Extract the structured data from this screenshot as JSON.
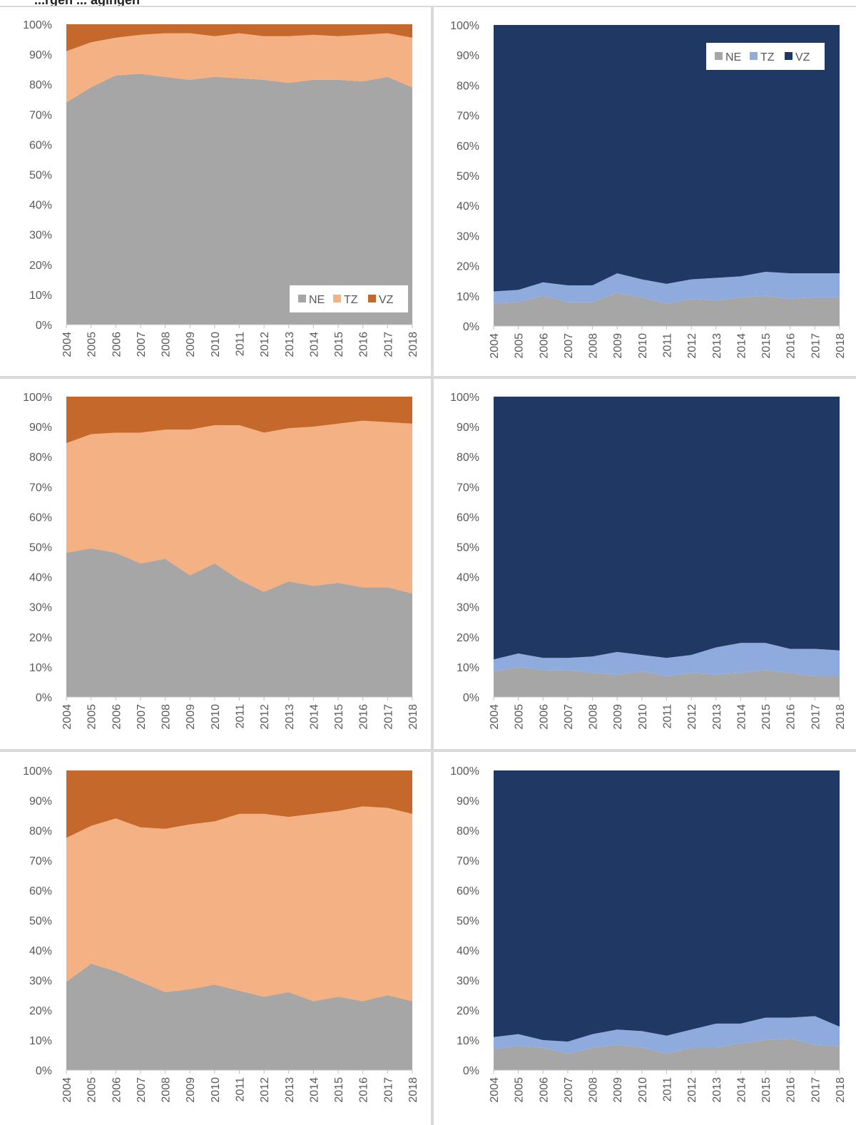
{
  "page": {
    "title_fragment": "...rgen ... agingen"
  },
  "legend_labels": [
    "NE",
    "TZ",
    "VZ"
  ],
  "colors": {
    "NE": "#a6a6a6",
    "TZ_orange": "#f4b183",
    "VZ_orange": "#c5682b",
    "TZ_blue": "#8faadc",
    "VZ_blue": "#203864",
    "axis_text": "#595959",
    "divider": "#d9d9d9"
  },
  "chart_data": [
    {
      "type": "area",
      "stacked": true,
      "palette": "orange",
      "legend_position": "bottom-right",
      "x": [
        "2004",
        "2005",
        "2006",
        "2007",
        "2008",
        "2009",
        "2010",
        "2011",
        "2012",
        "2013",
        "2014",
        "2015",
        "2016",
        "2017",
        "2018"
      ],
      "ylim": [
        0,
        100
      ],
      "yticks": [
        "0%",
        "10%",
        "20%",
        "30%",
        "40%",
        "50%",
        "60%",
        "70%",
        "80%",
        "90%",
        "100%"
      ],
      "series": [
        {
          "name": "NE",
          "values": [
            74,
            79,
            83,
            83.5,
            82.5,
            81.5,
            82.5,
            82,
            81.5,
            80.5,
            81.5,
            81.5,
            81,
            82.5,
            79
          ]
        },
        {
          "name": "TZ",
          "values": [
            17,
            15,
            12.5,
            13,
            14.5,
            15.5,
            13.5,
            15,
            14.5,
            15.5,
            15,
            14.5,
            15.5,
            14.5,
            16.5
          ]
        },
        {
          "name": "VZ",
          "values": [
            9,
            6,
            4.5,
            3.5,
            3,
            3,
            4,
            3,
            4,
            4,
            3.5,
            4,
            3.5,
            3,
            4.5
          ]
        }
      ]
    },
    {
      "type": "area",
      "stacked": true,
      "palette": "blue",
      "legend_position": "top-right",
      "x": [
        "2004",
        "2005",
        "2006",
        "2007",
        "2008",
        "2009",
        "2010",
        "2011",
        "2012",
        "2013",
        "2014",
        "2015",
        "2016",
        "2017",
        "2018"
      ],
      "ylim": [
        0,
        100
      ],
      "yticks": [
        "0%",
        "10%",
        "20%",
        "30%",
        "40%",
        "50%",
        "60%",
        "70%",
        "80%",
        "90%",
        "100%"
      ],
      "series": [
        {
          "name": "NE",
          "values": [
            7.5,
            8,
            10,
            8,
            8,
            11,
            9.5,
            7.5,
            9,
            8.5,
            9.5,
            10,
            9,
            9.5,
            9.5
          ]
        },
        {
          "name": "TZ",
          "values": [
            4,
            4,
            4.5,
            5.5,
            5.5,
            6.5,
            6,
            6.5,
            6.5,
            7.5,
            7,
            8,
            8.5,
            8,
            8
          ]
        },
        {
          "name": "VZ",
          "values": [
            88.5,
            88,
            85.5,
            86.5,
            86.5,
            82.5,
            84.5,
            86,
            84.5,
            84,
            83.5,
            82,
            82.5,
            82.5,
            82.5
          ]
        }
      ]
    },
    {
      "type": "area",
      "stacked": true,
      "palette": "orange",
      "legend_position": "none",
      "x": [
        "2004",
        "2005",
        "2006",
        "2007",
        "2008",
        "2009",
        "2010",
        "2011",
        "2012",
        "2013",
        "2014",
        "2015",
        "2016",
        "2017",
        "2018"
      ],
      "ylim": [
        0,
        100
      ],
      "yticks": [
        "0%",
        "10%",
        "20%",
        "30%",
        "40%",
        "50%",
        "60%",
        "70%",
        "80%",
        "90%",
        "100%"
      ],
      "series": [
        {
          "name": "NE",
          "values": [
            48,
            49.5,
            48,
            44.5,
            46,
            40.5,
            44.5,
            39,
            35,
            38.5,
            37,
            38,
            36.5,
            36.5,
            34.5
          ]
        },
        {
          "name": "TZ",
          "values": [
            36.5,
            38,
            40,
            43.5,
            43,
            48.5,
            46,
            51.5,
            53,
            51,
            53,
            53,
            55.5,
            55,
            56.5
          ]
        },
        {
          "name": "VZ",
          "values": [
            15.5,
            12.5,
            12,
            12,
            11,
            11,
            9.5,
            9.5,
            12,
            10.5,
            10,
            9,
            8,
            8.5,
            9
          ]
        }
      ]
    },
    {
      "type": "area",
      "stacked": true,
      "palette": "blue",
      "legend_position": "none",
      "x": [
        "2004",
        "2005",
        "2006",
        "2007",
        "2008",
        "2009",
        "2010",
        "2011",
        "2012",
        "2013",
        "2014",
        "2015",
        "2016",
        "2017",
        "2018"
      ],
      "ylim": [
        0,
        100
      ],
      "yticks": [
        "0%",
        "10%",
        "20%",
        "30%",
        "40%",
        "50%",
        "60%",
        "70%",
        "80%",
        "90%",
        "100%"
      ],
      "series": [
        {
          "name": "NE",
          "values": [
            8.5,
            10,
            9,
            9,
            8,
            7.5,
            8.5,
            7,
            8,
            7.5,
            8,
            9,
            8,
            7,
            7
          ]
        },
        {
          "name": "TZ",
          "values": [
            4,
            4.5,
            4,
            4,
            5.5,
            7.5,
            5.5,
            6,
            6,
            9,
            10,
            9,
            8,
            9,
            8.5
          ]
        },
        {
          "name": "VZ",
          "values": [
            87.5,
            85.5,
            87,
            87,
            86.5,
            85,
            86,
            87,
            86,
            83.5,
            82,
            82,
            84,
            84,
            84.5
          ]
        }
      ]
    },
    {
      "type": "area",
      "stacked": true,
      "palette": "orange",
      "legend_position": "none",
      "x": [
        "2004",
        "2005",
        "2006",
        "2007",
        "2008",
        "2009",
        "2010",
        "2011",
        "2012",
        "2013",
        "2014",
        "2015",
        "2016",
        "2017",
        "2018"
      ],
      "ylim": [
        0,
        100
      ],
      "yticks": [
        "0%",
        "10%",
        "20%",
        "30%",
        "40%",
        "50%",
        "60%",
        "70%",
        "80%",
        "90%",
        "100%"
      ],
      "series": [
        {
          "name": "NE",
          "values": [
            29.5,
            35.5,
            33,
            29.5,
            26,
            27,
            28.5,
            26.5,
            24.5,
            26,
            23,
            24.5,
            23,
            25,
            23
          ]
        },
        {
          "name": "TZ",
          "values": [
            48,
            46,
            51,
            51.5,
            54.5,
            55,
            54.5,
            59,
            61,
            58.5,
            62.5,
            62,
            65,
            62.5,
            62.5
          ]
        },
        {
          "name": "VZ",
          "values": [
            22.5,
            18.5,
            16,
            19,
            19.5,
            18,
            17,
            14.5,
            14.5,
            15.5,
            14.5,
            13.5,
            12,
            12.5,
            14.5
          ]
        }
      ]
    },
    {
      "type": "area",
      "stacked": true,
      "palette": "blue",
      "legend_position": "none",
      "x": [
        "2004",
        "2005",
        "2006",
        "2007",
        "2008",
        "2009",
        "2010",
        "2011",
        "2012",
        "2013",
        "2014",
        "2015",
        "2016",
        "2017",
        "2018"
      ],
      "ylim": [
        0,
        100
      ],
      "yticks": [
        "0%",
        "10%",
        "20%",
        "30%",
        "40%",
        "50%",
        "60%",
        "70%",
        "80%",
        "90%",
        "100%"
      ],
      "series": [
        {
          "name": "NE",
          "values": [
            7,
            8,
            7.5,
            5.5,
            7.5,
            8.5,
            7.5,
            5.5,
            7.5,
            7.5,
            9,
            10,
            10.5,
            8.5,
            8
          ]
        },
        {
          "name": "TZ",
          "values": [
            4,
            4,
            2.5,
            4,
            4.5,
            5,
            5.5,
            6,
            6,
            8,
            6.5,
            7.5,
            7,
            9.5,
            6.5
          ]
        },
        {
          "name": "VZ",
          "values": [
            89,
            88,
            90,
            90.5,
            88,
            86.5,
            87,
            88.5,
            86.5,
            84.5,
            84.5,
            82.5,
            82.5,
            82,
            85.5
          ]
        }
      ]
    }
  ]
}
